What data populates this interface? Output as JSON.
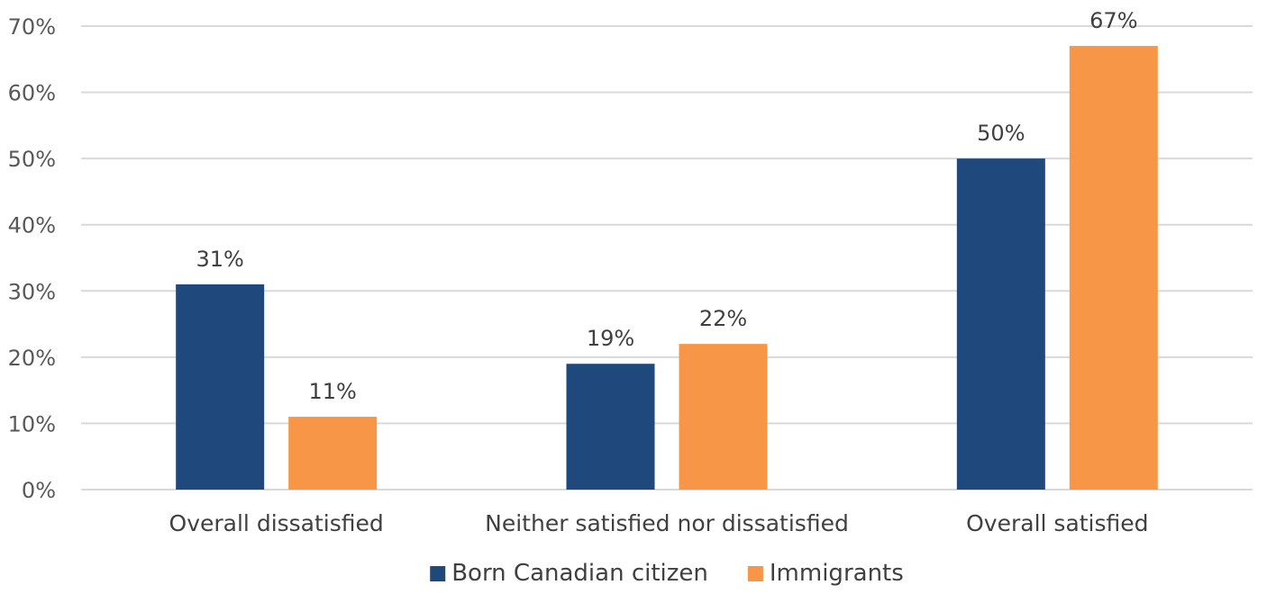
{
  "chart_data": {
    "type": "bar",
    "categories": [
      "Overall dissatisfied",
      "Neither satisfied nor dissatisfied",
      "Overall satisfied"
    ],
    "series": [
      {
        "name": "Born Canadian citizen",
        "values": [
          31,
          19,
          50
        ],
        "labels": [
          "31%",
          "19%",
          "50%"
        ],
        "color": "#1f497d"
      },
      {
        "name": "Immigrants",
        "values": [
          11,
          22,
          67
        ],
        "labels": [
          "11%",
          "22%",
          "67%"
        ],
        "color": "#f79646"
      }
    ],
    "yticks": [
      "0%",
      "10%",
      "20%",
      "30%",
      "40%",
      "50%",
      "60%",
      "70%"
    ],
    "ylim": [
      0,
      70
    ],
    "grid": true,
    "legend_position": "bottom-center"
  }
}
